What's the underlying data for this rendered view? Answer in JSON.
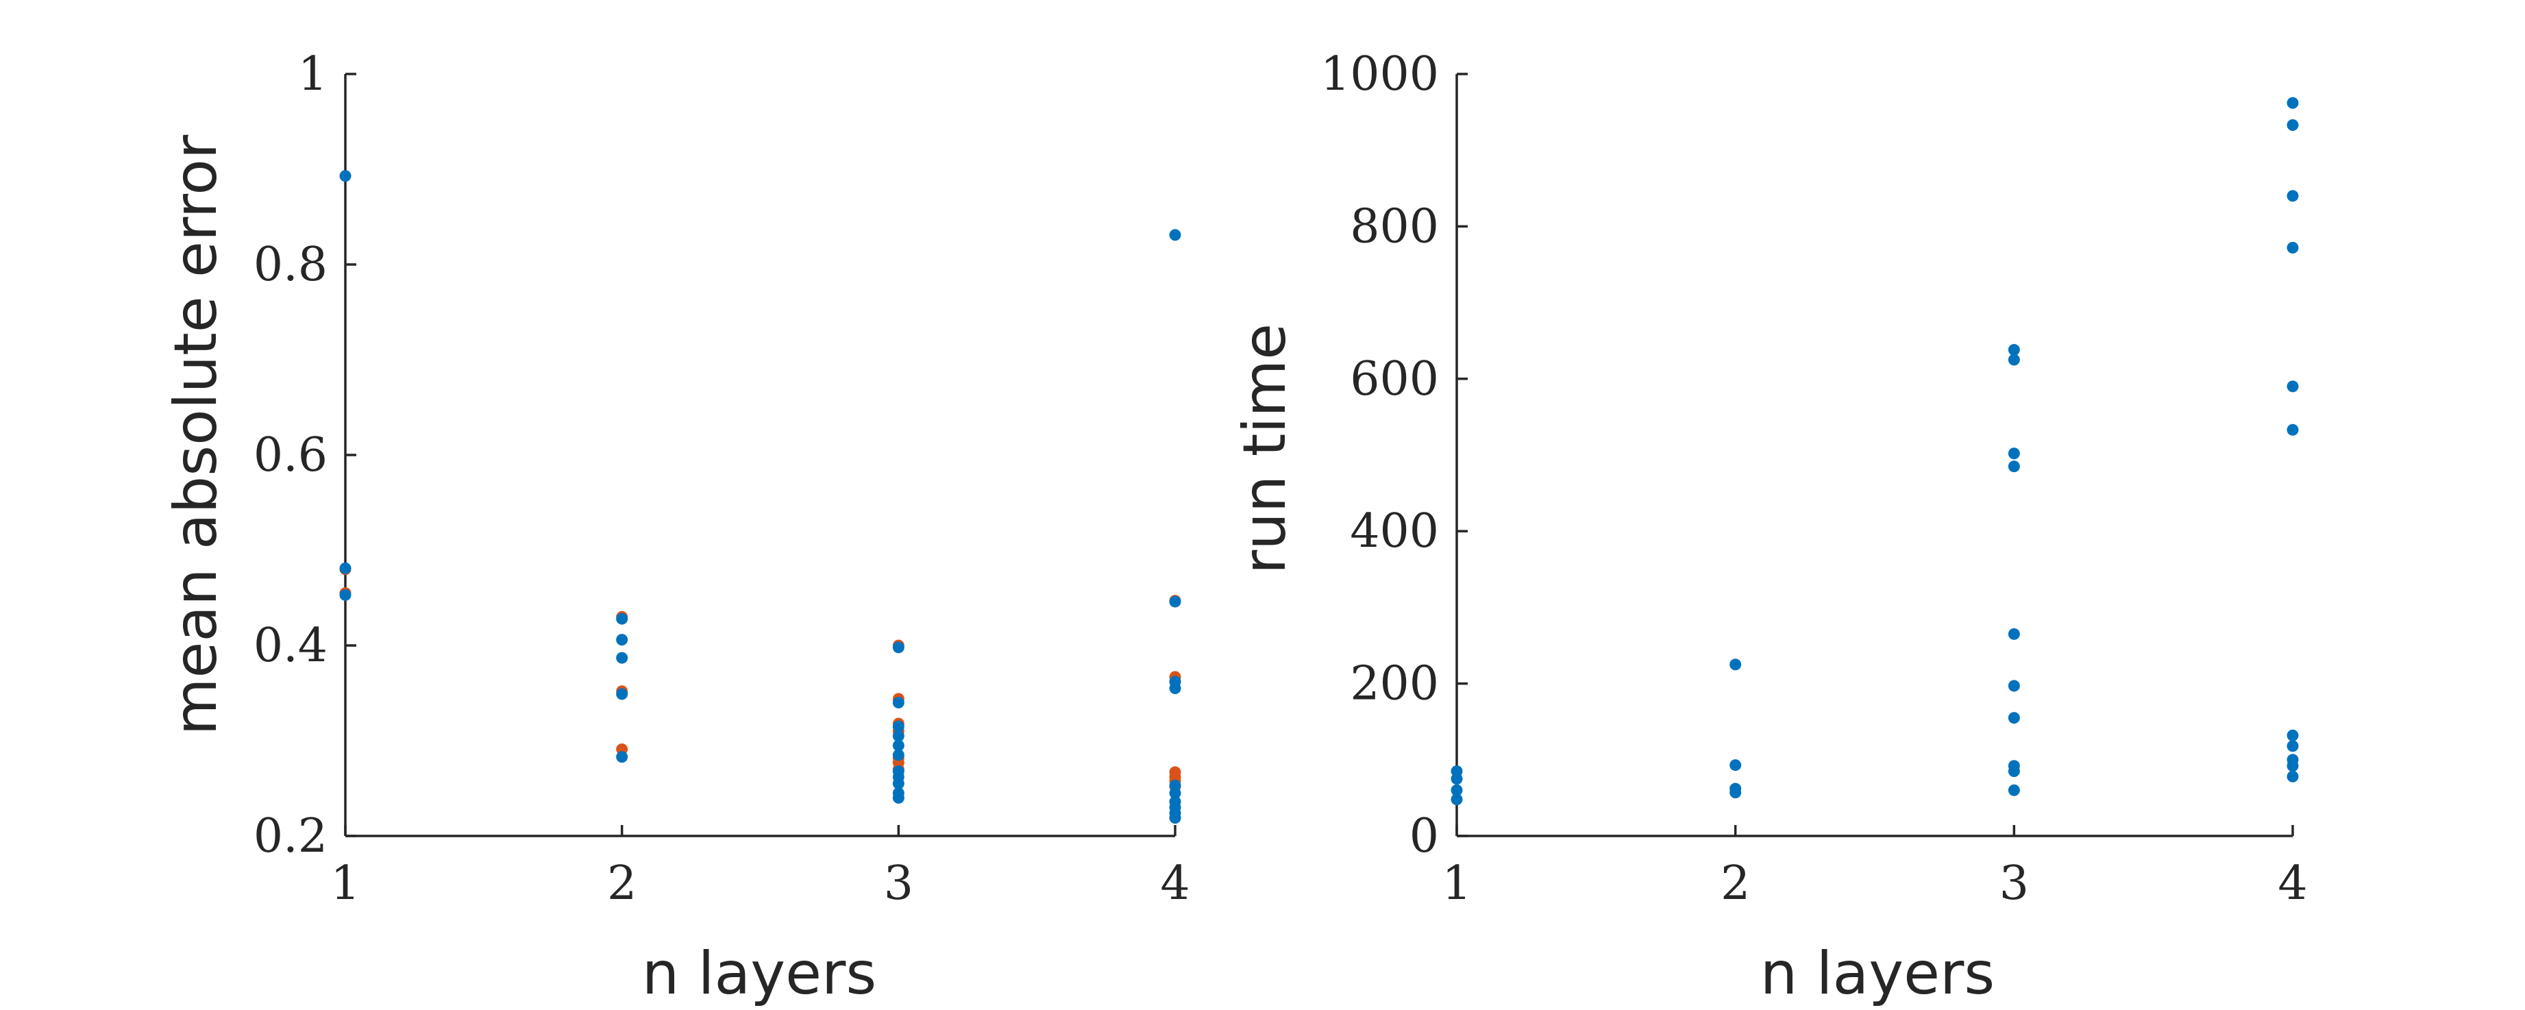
{
  "colors": {
    "series_blue": "#0072BD",
    "series_orange": "#D95319",
    "axis": "#262626",
    "background": "#FFFFFF"
  },
  "chart_data": [
    {
      "type": "scatter",
      "title": "",
      "xlabel": "n layers",
      "ylabel": "mean absolute error",
      "xlim": [
        1,
        4
      ],
      "ylim": [
        0.2,
        1
      ],
      "xticks": [
        1,
        2,
        3,
        4
      ],
      "yticks": [
        0.2,
        0.4,
        0.6,
        0.8,
        1
      ],
      "xtick_labels": [
        "1",
        "2",
        "3",
        "4"
      ],
      "ytick_labels": [
        "0.2",
        "0.4",
        "0.6",
        "0.8",
        "1"
      ],
      "grid": false,
      "series": [
        {
          "color": "#D95319",
          "points": [
            [
              1,
              0.48
            ],
            [
              1,
              0.455
            ],
            [
              2,
              0.43
            ],
            [
              2,
              0.352
            ],
            [
              2,
              0.291
            ],
            [
              3,
              0.4
            ],
            [
              3,
              0.344
            ],
            [
              3,
              0.318
            ],
            [
              3,
              0.31
            ],
            [
              3,
              0.282
            ],
            [
              3,
              0.277
            ],
            [
              3,
              0.27
            ],
            [
              4,
              0.447
            ],
            [
              4,
              0.367
            ],
            [
              4,
              0.362
            ],
            [
              4,
              0.267
            ],
            [
              4,
              0.262
            ],
            [
              4,
              0.258
            ],
            [
              4,
              0.252
            ]
          ]
        },
        {
          "color": "#0072BD",
          "points": [
            [
              1,
              0.893
            ],
            [
              1,
              0.481
            ],
            [
              1,
              0.453
            ],
            [
              2,
              0.428
            ],
            [
              2,
              0.406
            ],
            [
              2,
              0.387
            ],
            [
              2,
              0.349
            ],
            [
              2,
              0.283
            ],
            [
              3,
              0.398
            ],
            [
              3,
              0.34
            ],
            [
              3,
              0.315
            ],
            [
              3,
              0.305
            ],
            [
              3,
              0.295
            ],
            [
              3,
              0.285
            ],
            [
              3,
              0.268
            ],
            [
              3,
              0.262
            ],
            [
              3,
              0.255
            ],
            [
              3,
              0.245
            ],
            [
              3,
              0.24
            ],
            [
              4,
              0.831
            ],
            [
              4,
              0.446
            ],
            [
              4,
              0.362
            ],
            [
              4,
              0.355
            ],
            [
              4,
              0.253
            ],
            [
              4,
              0.245
            ],
            [
              4,
              0.236
            ],
            [
              4,
              0.23
            ],
            [
              4,
              0.224
            ],
            [
              4,
              0.219
            ]
          ]
        }
      ]
    },
    {
      "type": "scatter",
      "title": "",
      "xlabel": "n layers",
      "ylabel": "run time",
      "xlim": [
        1,
        4
      ],
      "ylim": [
        0,
        1000
      ],
      "xticks": [
        1,
        2,
        3,
        4
      ],
      "yticks": [
        0,
        200,
        400,
        600,
        800,
        1000
      ],
      "xtick_labels": [
        "1",
        "2",
        "3",
        "4"
      ],
      "ytick_labels": [
        "0",
        "200",
        "400",
        "600",
        "800",
        "1000"
      ],
      "grid": false,
      "series": [
        {
          "color": "#0072BD",
          "points": [
            [
              1,
              85
            ],
            [
              1,
              75
            ],
            [
              1,
              60
            ],
            [
              1,
              48
            ],
            [
              2,
              225
            ],
            [
              2,
              93
            ],
            [
              2,
              62
            ],
            [
              2,
              57
            ],
            [
              3,
              638
            ],
            [
              3,
              625
            ],
            [
              3,
              502
            ],
            [
              3,
              485
            ],
            [
              3,
              265
            ],
            [
              3,
              197
            ],
            [
              3,
              155
            ],
            [
              3,
              92
            ],
            [
              3,
              85
            ],
            [
              3,
              60
            ],
            [
              4,
              962
            ],
            [
              4,
              933
            ],
            [
              4,
              840
            ],
            [
              4,
              772
            ],
            [
              4,
              590
            ],
            [
              4,
              533
            ],
            [
              4,
              132
            ],
            [
              4,
              118
            ],
            [
              4,
              100
            ],
            [
              4,
              92
            ],
            [
              4,
              78
            ]
          ]
        }
      ]
    }
  ]
}
